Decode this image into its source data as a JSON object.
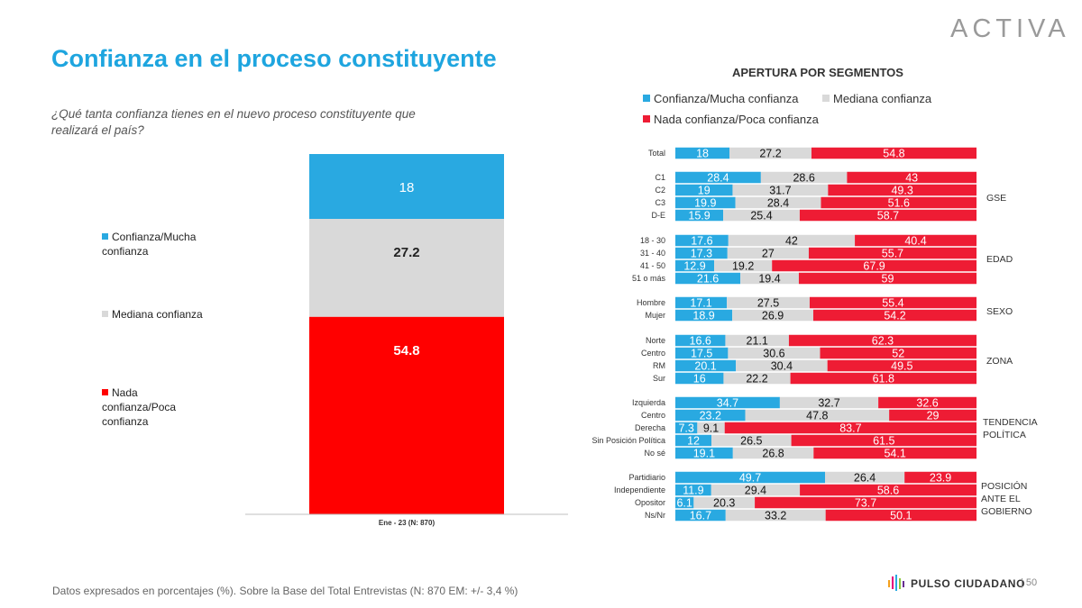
{
  "header": {
    "logo": "ACTIVA",
    "title": "Confianza en el proceso constituyente",
    "question": "¿Qué tanta confianza tienes en el nuevo proceso constituyente que realizará el país?"
  },
  "footer": {
    "note": "Datos expresados en porcentajes (%). Sobre la Base del Total Entrevistas (N: 870  EM: +/- 3,4 %)",
    "brand": "PULSO CIUDADANO",
    "page": "|  50"
  },
  "colors": {
    "blue": "#29a9e1",
    "gray": "#d9d9d9",
    "red": "#ff0000",
    "red_seg": "#ee1c34"
  },
  "chart_data": [
    {
      "type": "bar",
      "stacked": true,
      "categories": [
        "Ene - 23 (N: 870)"
      ],
      "series": [
        {
          "name": "Confianza/Mucha confianza",
          "values": [
            18
          ]
        },
        {
          "name": "Mediana confianza",
          "values": [
            27.2
          ]
        },
        {
          "name": "Nada confianza/Poca confianza",
          "values": [
            54.8
          ]
        }
      ],
      "legend_position": "left"
    },
    {
      "type": "bar",
      "orientation": "horizontal",
      "stacked": true,
      "title": "APERTURA POR SEGMENTOS",
      "series_names": [
        "Confianza/Mucha confianza",
        "Mediana confianza",
        "Nada confianza/Poca confianza"
      ],
      "legend_position": "top",
      "groups": [
        {
          "label": "",
          "rows": [
            {
              "label": "Total",
              "values": [
                18,
                27.2,
                54.8
              ]
            }
          ]
        },
        {
          "label": "GSE",
          "rows": [
            {
              "label": "C1",
              "values": [
                28.4,
                28.6,
                43
              ]
            },
            {
              "label": "C2",
              "values": [
                19,
                31.7,
                49.3
              ]
            },
            {
              "label": "C3",
              "values": [
                19.9,
                28.4,
                51.6
              ]
            },
            {
              "label": "D-E",
              "values": [
                15.9,
                25.4,
                58.7
              ]
            }
          ]
        },
        {
          "label": "EDAD",
          "rows": [
            {
              "label": "18 - 30",
              "values": [
                17.6,
                42,
                40.4
              ]
            },
            {
              "label": "31 - 40",
              "values": [
                17.3,
                27,
                55.7
              ]
            },
            {
              "label": "41 - 50",
              "values": [
                12.9,
                19.2,
                67.9
              ]
            },
            {
              "label": "51 o más",
              "values": [
                21.6,
                19.4,
                59
              ]
            }
          ]
        },
        {
          "label": "SEXO",
          "rows": [
            {
              "label": "Hombre",
              "values": [
                17.1,
                27.5,
                55.4
              ]
            },
            {
              "label": "Mujer",
              "values": [
                18.9,
                26.9,
                54.2
              ]
            }
          ]
        },
        {
          "label": "ZONA",
          "rows": [
            {
              "label": "Norte",
              "values": [
                16.6,
                21.1,
                62.3
              ]
            },
            {
              "label": "Centro",
              "values": [
                17.5,
                30.6,
                52
              ]
            },
            {
              "label": "RM",
              "values": [
                20.1,
                30.4,
                49.5
              ]
            },
            {
              "label": "Sur",
              "values": [
                16,
                22.2,
                61.8
              ]
            }
          ]
        },
        {
          "label": "TENDENCIA POLÍTICA",
          "rows": [
            {
              "label": "Izquierda",
              "values": [
                34.7,
                32.7,
                32.6
              ]
            },
            {
              "label": "Centro",
              "values": [
                23.2,
                47.8,
                29
              ]
            },
            {
              "label": "Derecha",
              "values": [
                7.3,
                9.1,
                83.7
              ]
            },
            {
              "label": "Sin Posición Política",
              "values": [
                12,
                26.5,
                61.5
              ]
            },
            {
              "label": "No sé",
              "values": [
                19.1,
                26.8,
                54.1
              ]
            }
          ]
        },
        {
          "label": "POSICIÓN ANTE EL GOBIERNO",
          "rows": [
            {
              "label": "Partidiario",
              "values": [
                49.7,
                26.4,
                23.9
              ]
            },
            {
              "label": "Independiente",
              "values": [
                11.9,
                29.4,
                58.6
              ]
            },
            {
              "label": "Opositor",
              "values": [
                6.1,
                20.3,
                73.7
              ]
            },
            {
              "label": "Ns/Nr",
              "values": [
                16.7,
                33.2,
                50.1
              ]
            }
          ]
        }
      ]
    }
  ]
}
